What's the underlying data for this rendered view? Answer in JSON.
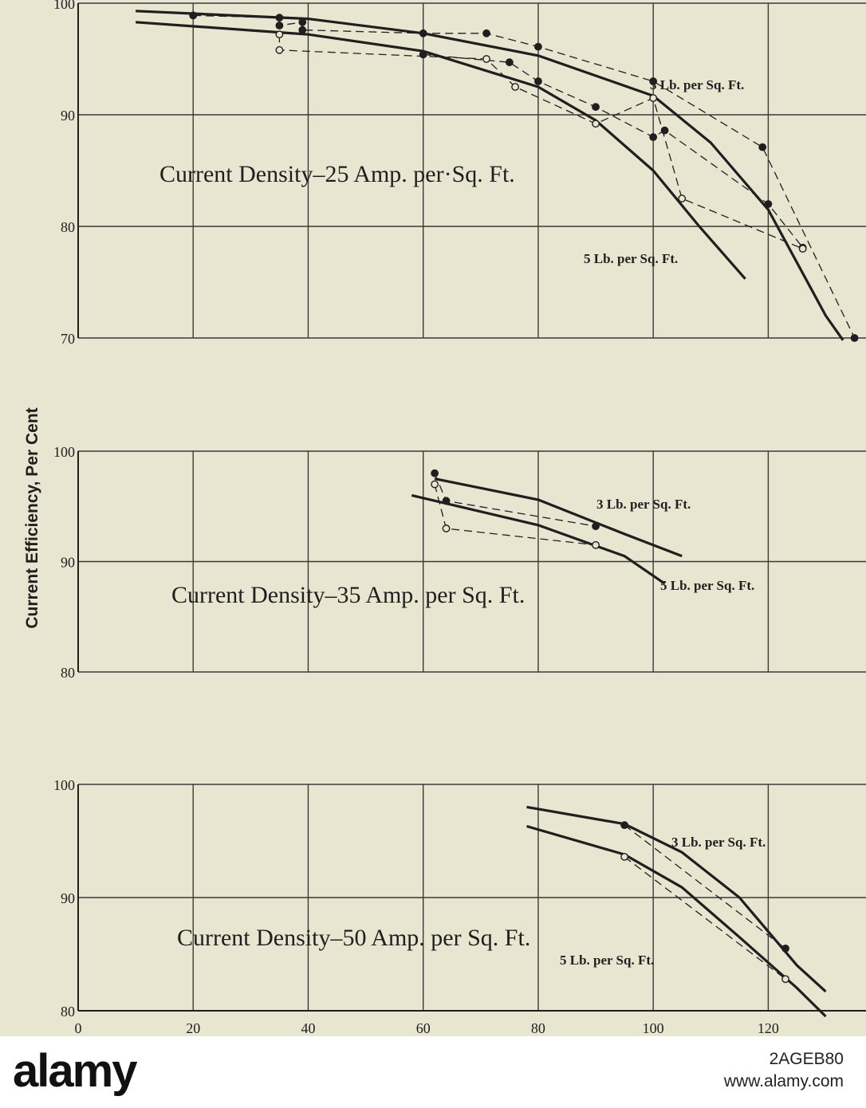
{
  "chart_data": [
    {
      "type": "line",
      "title": "Current Density–25 Amp. per·Sq. Ft.",
      "ylabel": "Current Efficiency, Per Cent",
      "xlim": [
        0,
        137
      ],
      "ylim": [
        70,
        100
      ],
      "y_ticks": [
        "100",
        "90",
        "80",
        "70"
      ],
      "grid": true,
      "series": [
        {
          "name": "3 Lb. per Sq. Ft.",
          "style": "fitted",
          "points": [
            [
              10,
              99.3
            ],
            [
              40,
              98.6
            ],
            [
              60,
              97.3
            ],
            [
              80,
              95.3
            ],
            [
              100,
              91.7
            ],
            [
              110,
              87.5
            ],
            [
              120,
              81.5
            ],
            [
              130,
              72.0
            ],
            [
              133,
              69.8
            ]
          ]
        },
        {
          "name": "5 Lb. per Sq. Ft.",
          "style": "fitted",
          "points": [
            [
              10,
              98.3
            ],
            [
              40,
              97.2
            ],
            [
              60,
              95.7
            ],
            [
              80,
              92.5
            ],
            [
              90,
              89.5
            ],
            [
              100,
              85.0
            ],
            [
              108,
              80.0
            ],
            [
              116,
              75.3
            ]
          ]
        },
        {
          "name": "",
          "style": "data-filled",
          "points": [
            [
              20,
              98.9
            ],
            [
              35,
              98.7
            ],
            [
              35,
              98.0
            ],
            [
              39,
              98.3
            ],
            [
              39,
              97.6
            ],
            [
              60,
              97.3
            ],
            [
              71,
              97.3
            ],
            [
              80,
              96.1
            ],
            [
              100,
              93.0
            ],
            [
              119,
              87.1
            ],
            [
              135,
              70.0
            ]
          ]
        },
        {
          "name": "",
          "style": "data-filled",
          "points": [
            [
              60,
              95.4
            ],
            [
              75,
              94.7
            ],
            [
              80,
              93.0
            ],
            [
              90,
              90.7
            ],
            [
              100,
              88.0
            ],
            [
              102,
              88.6
            ],
            [
              120,
              82.0
            ],
            [
              126,
              78.1
            ]
          ]
        },
        {
          "name": "",
          "style": "data-open",
          "points": [
            [
              35,
              97.2
            ],
            [
              35,
              95.8
            ],
            [
              71,
              95.0
            ],
            [
              76,
              92.5
            ],
            [
              90,
              89.2
            ],
            [
              100,
              91.5
            ],
            [
              105,
              82.5
            ],
            [
              126,
              78.0
            ]
          ]
        }
      ]
    },
    {
      "type": "line",
      "title": "Current Density–35 Amp. per Sq. Ft.",
      "xlim": [
        0,
        137
      ],
      "ylim": [
        80,
        100
      ],
      "y_ticks": [
        "100",
        "90",
        "80"
      ],
      "grid": true,
      "series": [
        {
          "name": "3 Lb. per Sq. Ft.",
          "style": "fitted",
          "points": [
            [
              62,
              97.5
            ],
            [
              80,
              95.6
            ],
            [
              95,
              92.5
            ],
            [
              105,
              90.5
            ]
          ]
        },
        {
          "name": "5 Lb. per Sq. Ft.",
          "style": "fitted",
          "points": [
            [
              58,
              96.0
            ],
            [
              80,
              93.3
            ],
            [
              95,
              90.5
            ],
            [
              102,
              88.0
            ]
          ]
        },
        {
          "name": "",
          "style": "data-filled",
          "points": [
            [
              62,
              98.0
            ],
            [
              64,
              95.5
            ],
            [
              90,
              93.2
            ]
          ]
        },
        {
          "name": "",
          "style": "data-open",
          "points": [
            [
              62,
              97.0
            ],
            [
              64,
              93.0
            ],
            [
              90,
              91.5
            ]
          ]
        }
      ]
    },
    {
      "type": "line",
      "title": "Current Density–50 Amp. per Sq. Ft.",
      "xlim": [
        0,
        137
      ],
      "ylim": [
        80,
        100
      ],
      "y_ticks": [
        "100",
        "90",
        "80"
      ],
      "x_ticks": [
        "0",
        "20",
        "40",
        "60",
        "80",
        "100",
        "120"
      ],
      "grid": true,
      "series": [
        {
          "name": "3 Lb. per Sq. Ft.",
          "style": "fitted",
          "points": [
            [
              78,
              98.0
            ],
            [
              95,
              96.5
            ],
            [
              105,
              94.0
            ],
            [
              115,
              90.0
            ],
            [
              125,
              84.0
            ],
            [
              130,
              81.7
            ]
          ]
        },
        {
          "name": "5 Lb. per Sq. Ft.",
          "style": "fitted",
          "points": [
            [
              78,
              96.3
            ],
            [
              95,
              93.8
            ],
            [
              105,
              90.9
            ],
            [
              115,
              86.5
            ],
            [
              125,
              82.0
            ],
            [
              130,
              79.5
            ]
          ]
        },
        {
          "name": "",
          "style": "data-filled",
          "points": [
            [
              95,
              96.4
            ],
            [
              123,
              85.5
            ]
          ]
        },
        {
          "name": "",
          "style": "data-open",
          "points": [
            [
              95,
              93.6
            ],
            [
              123,
              82.8
            ]
          ]
        }
      ]
    }
  ],
  "watermark": {
    "logo": "alamy",
    "image_id": "2AGEB80",
    "url": "www.alamy.com"
  },
  "colors": {
    "paper": "#e8e5d0",
    "ink": "#1f1f1f",
    "grid": "#3a3a3a"
  }
}
